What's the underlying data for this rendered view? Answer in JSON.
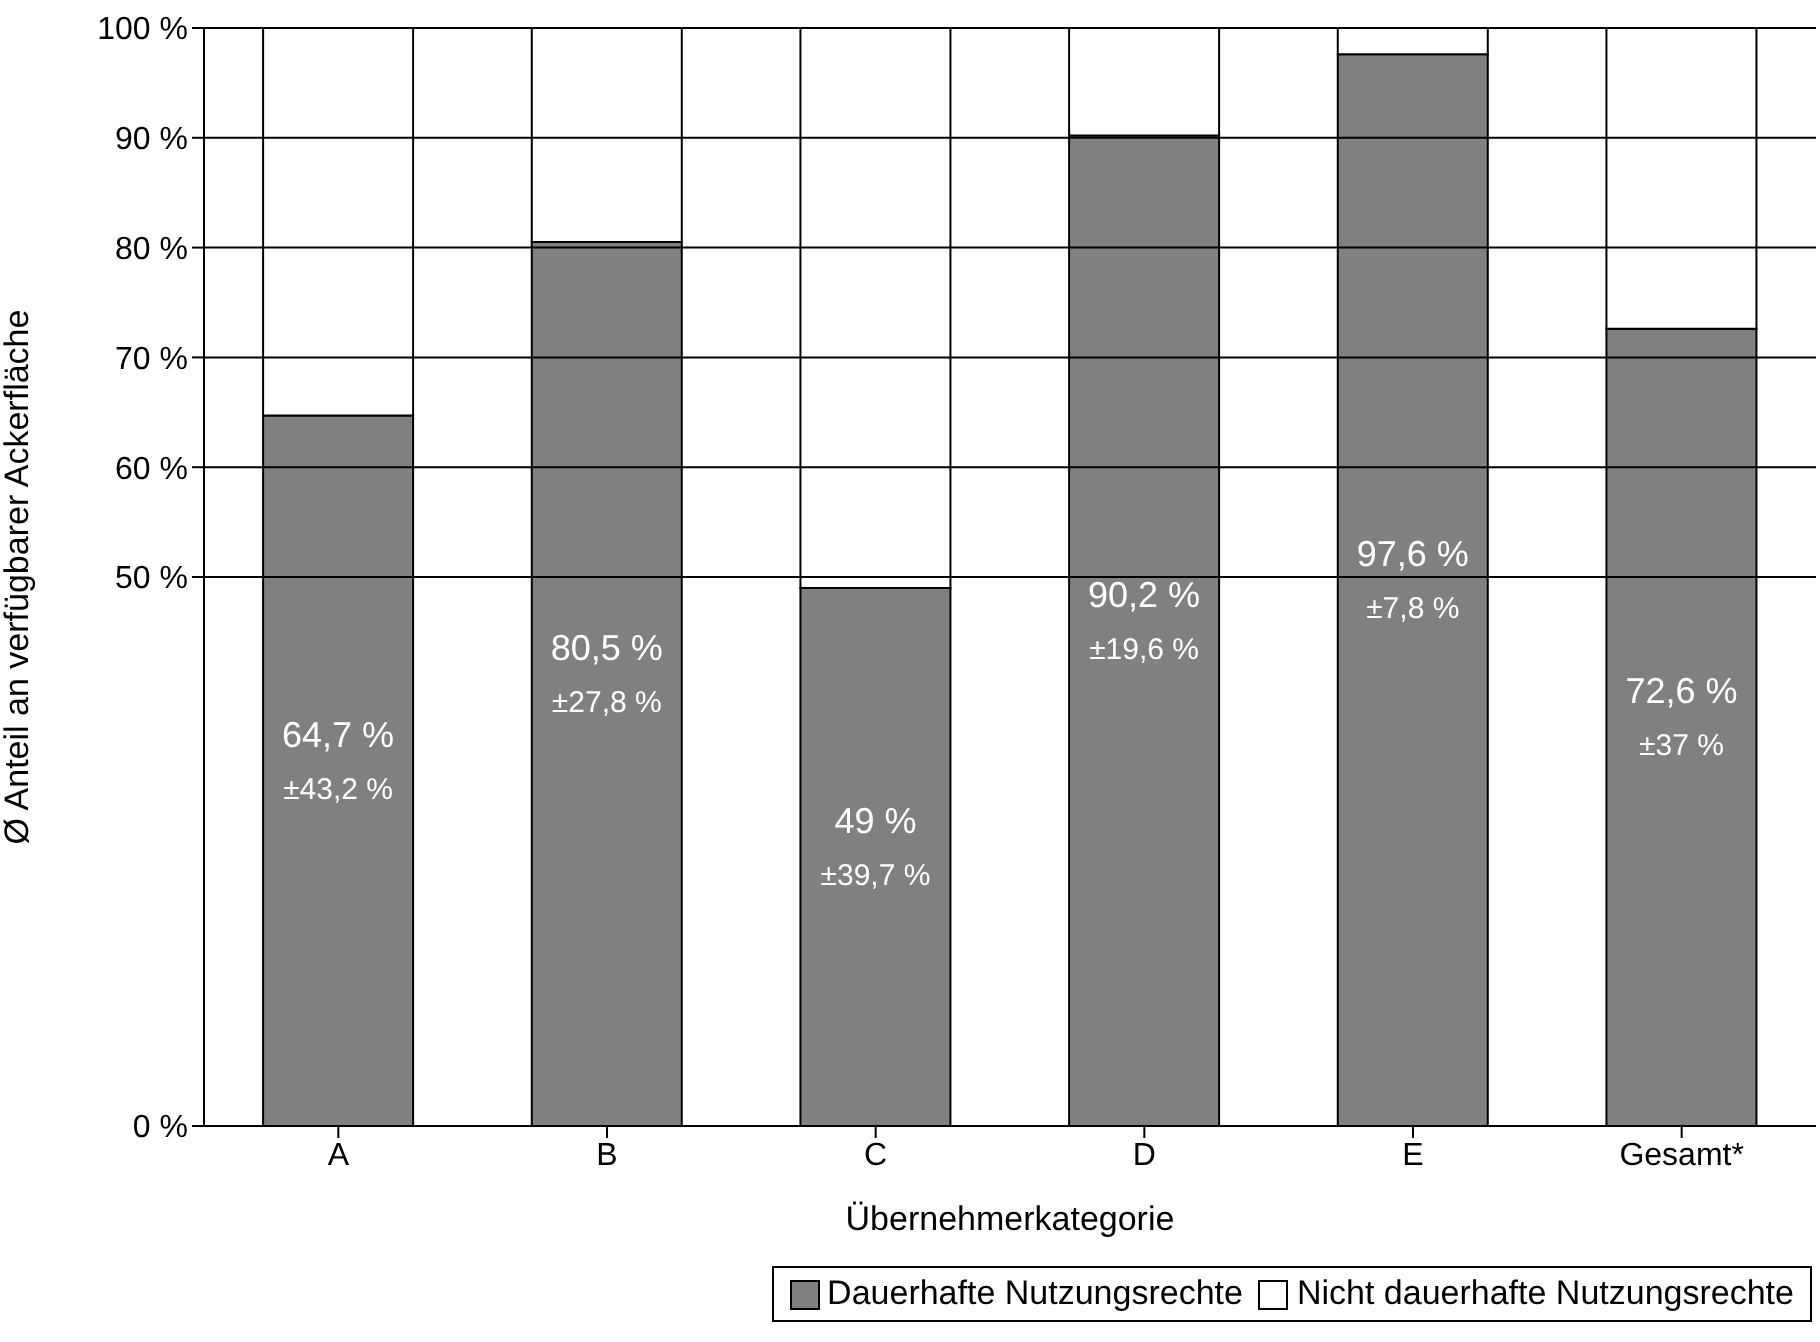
{
  "chart_data": {
    "type": "bar",
    "stacked": true,
    "xlabel": "Übernehmerkategorie",
    "ylabel": "Ø Anteil an verfügbarer Ackerfläche",
    "categories": [
      "A",
      "B",
      "C",
      "D",
      "E",
      "Gesamt*"
    ],
    "series": [
      {
        "name": "Dauerhafte Nutzungsrechte",
        "color": "#808080",
        "values": [
          64.7,
          80.5,
          49,
          90.2,
          97.6,
          72.6
        ],
        "value_labels": [
          "64,7 %\n±43,2 %",
          "80,5 %\n±27,8 %",
          "49 %\n±39,7 %",
          "90,2 %\n±19,6 %",
          "97,6 %\n±7,8 %",
          "72,6 %\n±37 %"
        ]
      },
      {
        "name": "Nicht dauerhafte Nutzungsrechte",
        "color": "#ffffff",
        "values": [
          35.3,
          19.5,
          51,
          9.8,
          2.4,
          27.4
        ]
      }
    ],
    "ylim": [
      0,
      100
    ],
    "yticks": [
      {
        "value": 0,
        "label": "0 %"
      },
      {
        "value": 50,
        "label": "50 %"
      },
      {
        "value": 60,
        "label": "60 %"
      },
      {
        "value": 70,
        "label": "70 %"
      },
      {
        "value": 80,
        "label": "80 %"
      },
      {
        "value": 90,
        "label": "90 %"
      },
      {
        "value": 100,
        "label": "100 %"
      }
    ],
    "grid": "y",
    "legend": "bottom"
  }
}
